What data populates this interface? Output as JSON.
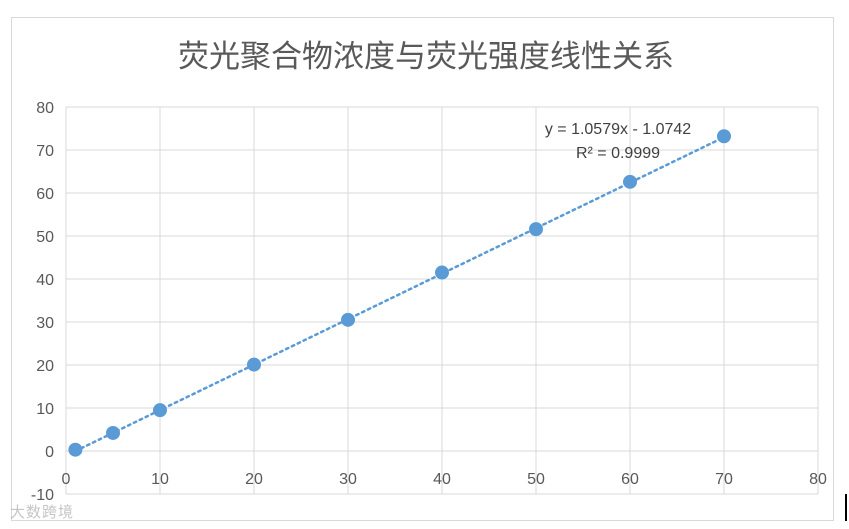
{
  "chart_data": {
    "type": "scatter",
    "title": "荧光聚合物浓度与荧光强度线性关系",
    "xlabel": "",
    "ylabel": "",
    "xlim": [
      0,
      80
    ],
    "ylim": [
      -10,
      80
    ],
    "x_ticks": [
      0,
      10,
      20,
      30,
      40,
      50,
      60,
      70,
      80
    ],
    "y_ticks": [
      -10,
      0,
      10,
      20,
      30,
      40,
      50,
      60,
      70,
      80
    ],
    "grid": true,
    "series": [
      {
        "x": [
          1,
          5,
          10,
          20,
          30,
          40,
          50,
          60,
          70
        ],
        "y": [
          0.3,
          4.2,
          9.5,
          20.1,
          30.5,
          41.5,
          51.6,
          62.6,
          73.2
        ],
        "color": "#5b9bd5"
      }
    ],
    "trendline": {
      "type": "linear",
      "slope": 1.0579,
      "intercept": -1.0742,
      "style": "dotted",
      "color": "#5b9bd5",
      "equation_label": "y = 1.0579x - 1.0742",
      "r2_label": "R² = 0.9999"
    }
  },
  "watermark_text": "大数跨境"
}
